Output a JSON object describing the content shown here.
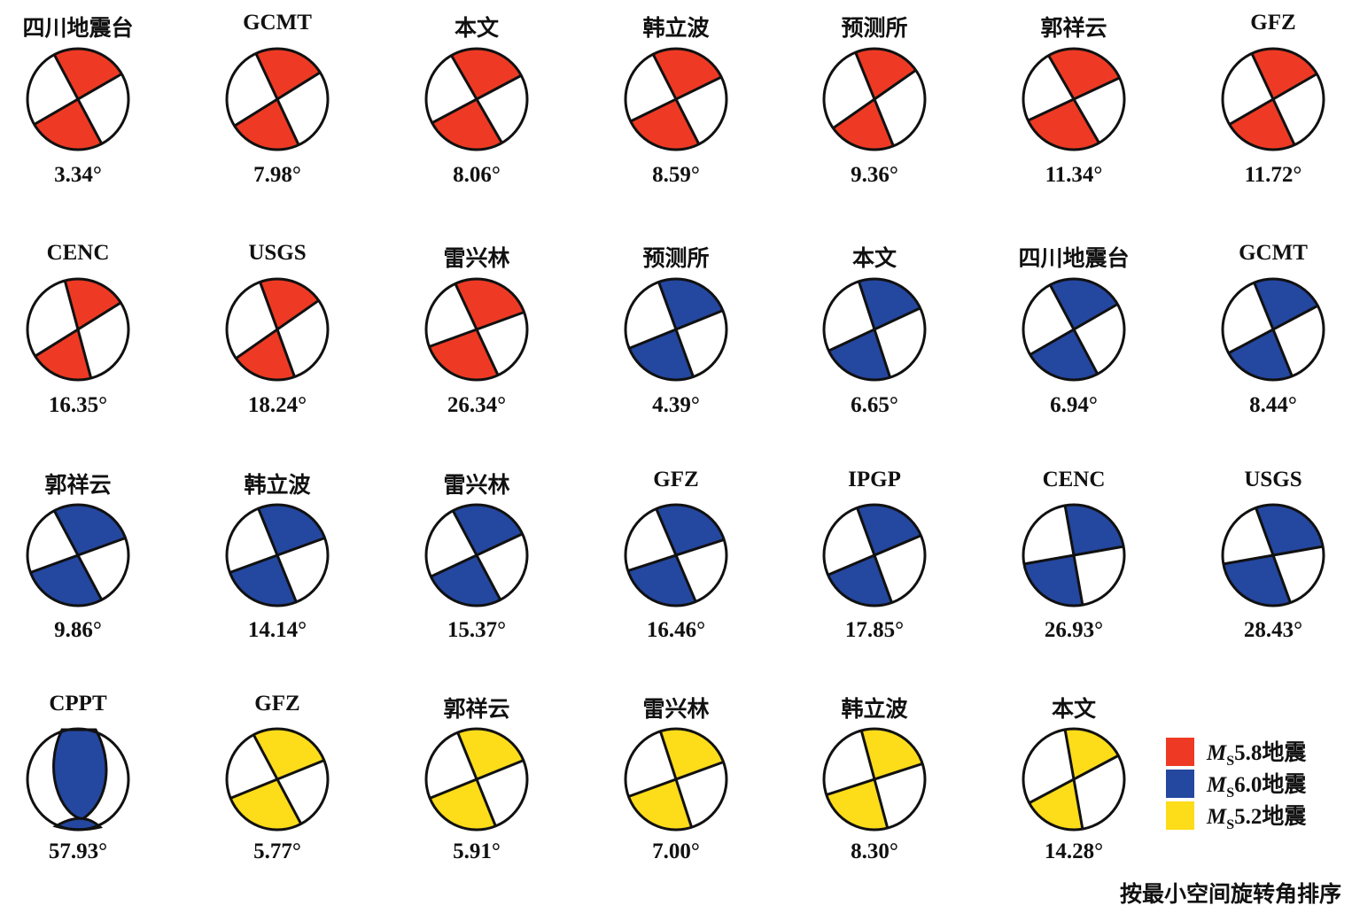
{
  "colors": {
    "ms58": "#ee3a24",
    "ms60": "#2447a0",
    "ms52": "#fddc1a"
  },
  "rows": [
    [
      {
        "source": "四川地震台",
        "angle": "3.34°",
        "event": "ms58"
      },
      {
        "source": "GCMT",
        "angle": "7.98°",
        "event": "ms58"
      },
      {
        "source": "本文",
        "angle": "8.06°",
        "event": "ms58"
      },
      {
        "source": "韩立波",
        "angle": "8.59°",
        "event": "ms58"
      },
      {
        "source": "预测所",
        "angle": "9.36°",
        "event": "ms58"
      },
      {
        "source": "郭祥云",
        "angle": "11.34°",
        "event": "ms58"
      },
      {
        "source": "GFZ",
        "angle": "11.72°",
        "event": "ms58"
      }
    ],
    [
      {
        "source": "CENC",
        "angle": "16.35°",
        "event": "ms58"
      },
      {
        "source": "USGS",
        "angle": "18.24°",
        "event": "ms58"
      },
      {
        "source": "雷兴林",
        "angle": "26.34°",
        "event": "ms58"
      },
      {
        "source": "预测所",
        "angle": "4.39°",
        "event": "ms60"
      },
      {
        "source": "本文",
        "angle": "6.65°",
        "event": "ms60"
      },
      {
        "source": "四川地震台",
        "angle": "6.94°",
        "event": "ms60"
      },
      {
        "source": "GCMT",
        "angle": "8.44°",
        "event": "ms60"
      }
    ],
    [
      {
        "source": "郭祥云",
        "angle": "9.86°",
        "event": "ms60"
      },
      {
        "source": "韩立波",
        "angle": "14.14°",
        "event": "ms60"
      },
      {
        "source": "雷兴林",
        "angle": "15.37°",
        "event": "ms60"
      },
      {
        "source": "GFZ",
        "angle": "16.46°",
        "event": "ms60"
      },
      {
        "source": "IPGP",
        "angle": "17.85°",
        "event": "ms60"
      },
      {
        "source": "CENC",
        "angle": "26.93°",
        "event": "ms60"
      },
      {
        "source": "USGS",
        "angle": "28.43°",
        "event": "ms60"
      }
    ],
    [
      {
        "source": "CPPT",
        "angle": "57.93°",
        "event": "ms60"
      },
      {
        "source": "GFZ",
        "angle": "5.77°",
        "event": "ms52"
      },
      {
        "source": "郭祥云",
        "angle": "5.91°",
        "event": "ms52"
      },
      {
        "source": "雷兴林",
        "angle": "7.00°",
        "event": "ms52"
      },
      {
        "source": "韩立波",
        "angle": "8.30°",
        "event": "ms52"
      },
      {
        "source": "本文",
        "angle": "14.28°",
        "event": "ms52"
      }
    ]
  ],
  "legend": [
    {
      "event": "ms58",
      "m": "M",
      "sub": "S",
      "text": "5.8地震"
    },
    {
      "event": "ms60",
      "m": "M",
      "sub": "S",
      "text": "6.0地震"
    },
    {
      "event": "ms52",
      "m": "M",
      "sub": "S",
      "text": "5.2地震"
    }
  ],
  "footer": "按最小空间旋转角排序"
}
